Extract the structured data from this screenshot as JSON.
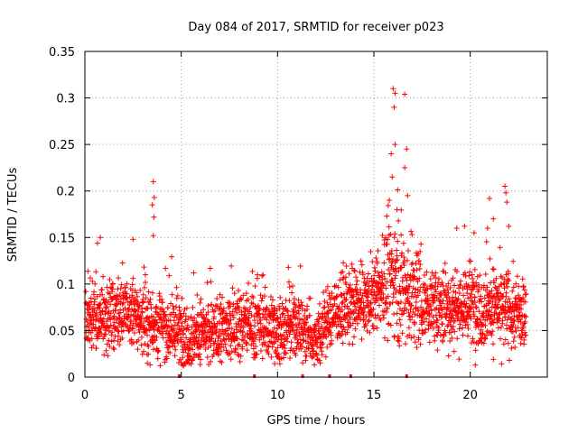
{
  "chart_data": {
    "type": "scatter",
    "title": "Day 084 of 2017, SRMTID for receiver p023",
    "xlabel": "GPS time / hours",
    "ylabel": "SRMTID / TECUs",
    "xlim": [
      0,
      24
    ],
    "ylim": [
      0,
      0.35
    ],
    "grid": true,
    "marker": "plus",
    "series_color": "#ff0000",
    "x_ticks": [
      0,
      5,
      10,
      15,
      20
    ],
    "x_tick_labels": [
      "0",
      "5",
      "10",
      "15",
      "20"
    ],
    "y_ticks": [
      0,
      0.05,
      0.1,
      0.15,
      0.2,
      0.25,
      0.3,
      0.35
    ],
    "y_tick_labels": [
      "0",
      "0.05",
      "0.1",
      "0.15",
      "0.2",
      "0.25",
      "0.3",
      "0.35"
    ],
    "data_gap_markers_x": [
      4.9,
      8.8,
      11.3,
      12.7,
      13.8,
      16.7
    ],
    "spikes": [
      {
        "x": 3.55,
        "y": 0.21
      },
      {
        "x": 3.6,
        "y": 0.193
      },
      {
        "x": 3.5,
        "y": 0.185
      },
      {
        "x": 3.58,
        "y": 0.172
      },
      {
        "x": 3.55,
        "y": 0.152
      },
      {
        "x": 2.5,
        "y": 0.148
      },
      {
        "x": 0.8,
        "y": 0.15
      },
      {
        "x": 16.0,
        "y": 0.31
      },
      {
        "x": 16.1,
        "y": 0.305
      },
      {
        "x": 16.6,
        "y": 0.304
      },
      {
        "x": 16.05,
        "y": 0.29
      },
      {
        "x": 16.1,
        "y": 0.25
      },
      {
        "x": 15.9,
        "y": 0.24
      },
      {
        "x": 16.7,
        "y": 0.245
      },
      {
        "x": 16.6,
        "y": 0.225
      },
      {
        "x": 15.95,
        "y": 0.215
      },
      {
        "x": 16.75,
        "y": 0.195
      },
      {
        "x": 15.8,
        "y": 0.19
      },
      {
        "x": 16.2,
        "y": 0.18
      },
      {
        "x": 21.8,
        "y": 0.205
      },
      {
        "x": 21.85,
        "y": 0.198
      },
      {
        "x": 21.0,
        "y": 0.192
      },
      {
        "x": 21.9,
        "y": 0.188
      },
      {
        "x": 21.2,
        "y": 0.17
      },
      {
        "x": 22.0,
        "y": 0.162
      },
      {
        "x": 20.9,
        "y": 0.16
      },
      {
        "x": 19.3,
        "y": 0.16
      },
      {
        "x": 20.2,
        "y": 0.155
      }
    ],
    "baseline_profile": [
      {
        "x": 0.0,
        "y": 0.06
      },
      {
        "x": 1.0,
        "y": 0.065
      },
      {
        "x": 2.0,
        "y": 0.07
      },
      {
        "x": 3.0,
        "y": 0.062
      },
      {
        "x": 4.0,
        "y": 0.055
      },
      {
        "x": 5.0,
        "y": 0.048
      },
      {
        "x": 6.0,
        "y": 0.045
      },
      {
        "x": 7.0,
        "y": 0.05
      },
      {
        "x": 8.0,
        "y": 0.055
      },
      {
        "x": 9.0,
        "y": 0.058
      },
      {
        "x": 10.0,
        "y": 0.05
      },
      {
        "x": 11.0,
        "y": 0.055
      },
      {
        "x": 12.0,
        "y": 0.042
      },
      {
        "x": 13.0,
        "y": 0.072
      },
      {
        "x": 14.0,
        "y": 0.075
      },
      {
        "x": 15.0,
        "y": 0.085
      },
      {
        "x": 16.0,
        "y": 0.11
      },
      {
        "x": 17.0,
        "y": 0.085
      },
      {
        "x": 18.0,
        "y": 0.075
      },
      {
        "x": 19.0,
        "y": 0.075
      },
      {
        "x": 20.0,
        "y": 0.078
      },
      {
        "x": 21.0,
        "y": 0.075
      },
      {
        "x": 22.0,
        "y": 0.07
      },
      {
        "x": 22.9,
        "y": 0.065
      }
    ],
    "x_data_range": [
      0.05,
      22.9
    ],
    "approx_point_count": 2600
  }
}
